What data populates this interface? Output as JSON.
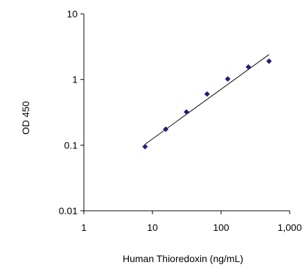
{
  "chart_data": {
    "type": "scatter",
    "title": "",
    "xlabel": "Human Thioredoxin (ng/mL)",
    "ylabel": "OD 450",
    "x_scale": "log",
    "y_scale": "log",
    "xlim": [
      1,
      1000
    ],
    "ylim": [
      0.01,
      10
    ],
    "x_ticks": [
      1,
      10,
      100,
      1000
    ],
    "x_tick_labels": [
      "1",
      "10",
      "100",
      "1,000"
    ],
    "y_ticks": [
      0.01,
      0.1,
      1,
      10
    ],
    "y_tick_labels": [
      "0.01",
      "0.1",
      "1",
      "10"
    ],
    "grid": false,
    "legend": "none",
    "series": [
      {
        "x": [
          7.8,
          15.6,
          31.25,
          62.5,
          125,
          250,
          500
        ],
        "y": [
          0.095,
          0.175,
          0.32,
          0.6,
          1.02,
          1.55,
          1.9
        ],
        "marker": "diamond",
        "color": "#1f1f7a"
      }
    ],
    "trendline": {
      "type": "power",
      "x": [
        7.8,
        500
      ],
      "y": [
        0.103,
        2.4
      ],
      "color": "#000000"
    }
  }
}
